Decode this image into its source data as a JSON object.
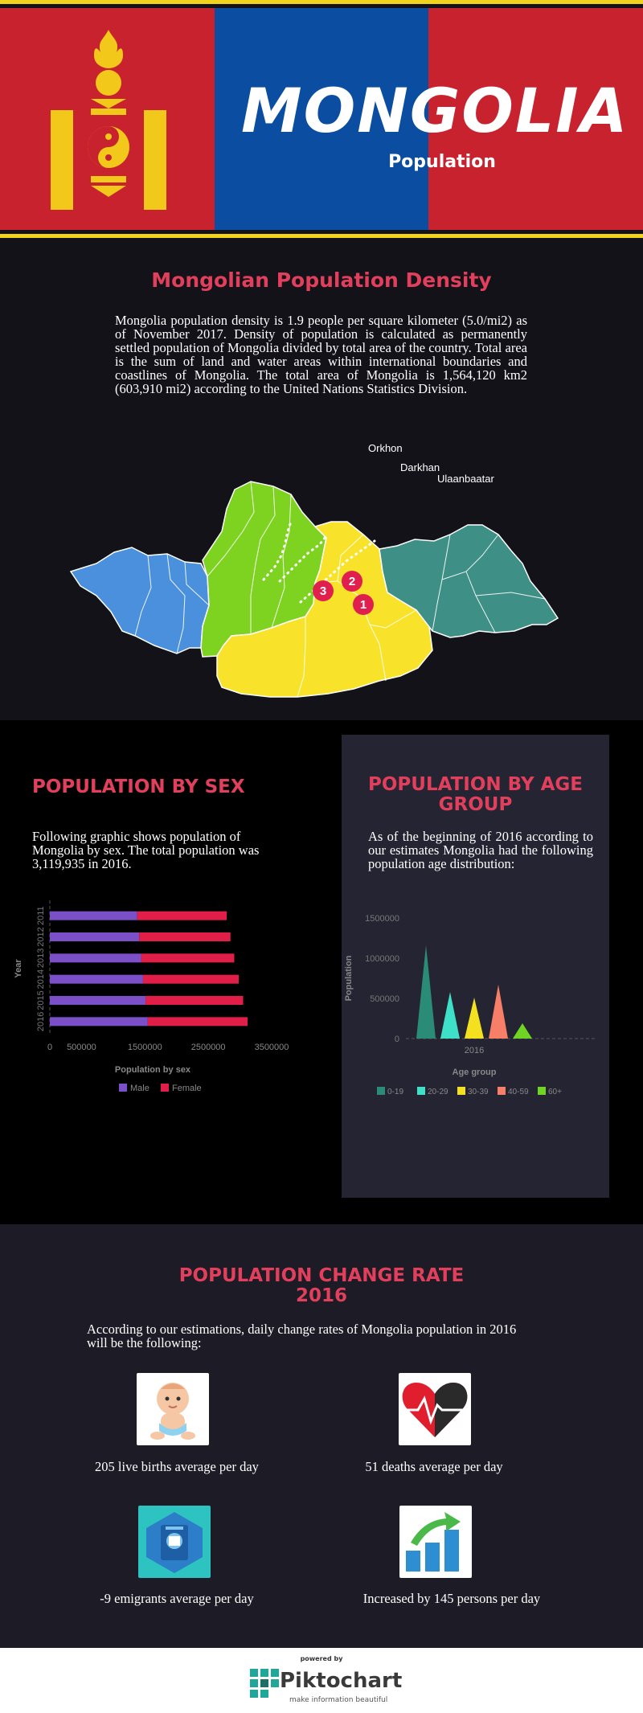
{
  "header": {
    "title": "MONGOLIA",
    "subtitle": "Population",
    "colors": {
      "red": "#c8222e",
      "blue": "#0a4da1",
      "yellow": "#f2d31b"
    }
  },
  "density": {
    "title": "Mongolian Population Density",
    "text": "Mongolia population density is 1.9 people per square kilometer (5.0/mi2) as of November 2017. Density of population is calculated as permanently settled population of Mongolia divided by total area of the country. Total area is the sum of land and water areas within international boundaries and coastlines of Mongolia. The total area of Mongolia is 1,564,120 km2 (603,910 mi2) according to the United Nations Statistics Division.",
    "map_labels": [
      "Orkhon",
      "Darkhan",
      "Ulaanbaatar"
    ],
    "map_markers": [
      "1",
      "2",
      "3"
    ]
  },
  "sex": {
    "title": "POPULATION BY SEX",
    "text": "Following graphic shows population of Mongolia by sex. The total population was 3,119,935 in 2016."
  },
  "age": {
    "title_line1": "POPULATION BY AGE",
    "title_line2": "GROUP",
    "text": "As of the beginning of 2016 according to our estimates Mongolia had the following population age distribution:"
  },
  "change": {
    "title_line1": "POPULATION CHANGE RATE",
    "title_line2": "2016",
    "text": "According to our estimations, daily change rates of Mongolia population in 2016 will be the following:",
    "stats": [
      {
        "label": "205 live births average per day",
        "icon": "baby-icon"
      },
      {
        "label": "51 deaths average per day",
        "icon": "heart-icon"
      },
      {
        "label": "-9 emigrants average per day",
        "icon": "passport-icon"
      },
      {
        "label": "Increased by 145 persons per day",
        "icon": "growth-chart-icon"
      }
    ]
  },
  "footer": {
    "powered_by": "powered by",
    "brand": "Piktochart",
    "tagline": "make information beautiful"
  },
  "chart_data": [
    {
      "type": "bar",
      "orientation": "horizontal",
      "stacked": true,
      "categories": [
        "2011",
        "2012",
        "2013",
        "2014",
        "2015",
        "2016"
      ],
      "series": [
        {
          "name": "Male",
          "color": "#7b4fc8",
          "values": [
            1380000,
            1410000,
            1440000,
            1470000,
            1510000,
            1545000
          ]
        },
        {
          "name": "Female",
          "color": "#e01e48",
          "values": [
            1410000,
            1440000,
            1470000,
            1510000,
            1540000,
            1575000
          ]
        }
      ],
      "xlabel": "Population by sex",
      "ylabel": "Year",
      "x_ticks": [
        "0",
        "500000",
        "1500000",
        "2500000",
        "3500000"
      ],
      "xlim": [
        0,
        3500000
      ],
      "legend": "bottom"
    },
    {
      "type": "area",
      "categories": [
        "2016"
      ],
      "series": [
        {
          "name": "0-19",
          "color": "#2a8b76",
          "values": [
            1160000
          ]
        },
        {
          "name": "20-29",
          "color": "#3fe0c8",
          "values": [
            580000
          ]
        },
        {
          "name": "30-39",
          "color": "#f3e11f",
          "values": [
            510000
          ]
        },
        {
          "name": "40-59",
          "color": "#f77f68",
          "values": [
            670000
          ]
        },
        {
          "name": "60+",
          "color": "#6fd424",
          "values": [
            190000
          ]
        }
      ],
      "xlabel": "Age group",
      "ylabel": "Population",
      "y_ticks": [
        "0",
        "500000",
        "1000000",
        "1500000"
      ],
      "ylim": [
        0,
        1500000
      ],
      "legend": "bottom"
    }
  ]
}
